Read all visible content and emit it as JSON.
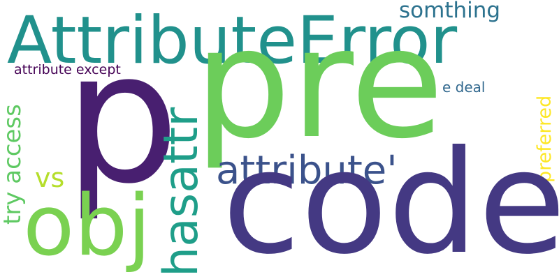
{
  "words": {
    "attributeerror": {
      "text": "AttributeError",
      "color": "#21918c"
    },
    "somthing": {
      "text": "somthing",
      "color": "#2c728e"
    },
    "attribute_except": {
      "text": "attribute except",
      "color": "#440154"
    },
    "e_deal": {
      "text": "e deal",
      "color": "#31688e"
    },
    "p": {
      "text": "p",
      "color": "#481f70"
    },
    "pre": {
      "text": "pre",
      "color": "#6ccd5a"
    },
    "preferred": {
      "text": "preferred",
      "color": "#fde725"
    },
    "hasattr": {
      "text": "hasattr",
      "color": "#1f9e89"
    },
    "attribute_quote": {
      "text": "attribute'",
      "color": "#3b528b"
    },
    "try_access": {
      "text": "try access",
      "color": "#5ec962"
    },
    "vs": {
      "text": "vs",
      "color": "#b5de2b"
    },
    "obj": {
      "text": "obj",
      "color": "#7ad151"
    },
    "code": {
      "text": "code",
      "color": "#443983"
    }
  }
}
